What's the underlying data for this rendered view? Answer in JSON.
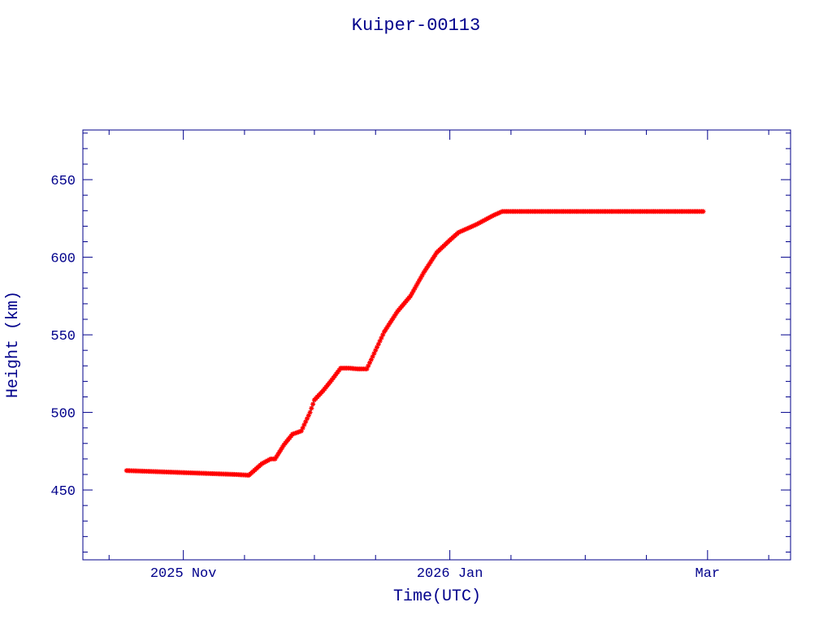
{
  "chart_data": {
    "type": "scatter",
    "title": "Kuiper-00113",
    "xlabel": "Time(UTC)",
    "ylabel": "Height (km)",
    "xlim": [
      "2025-10-09",
      "2026-03-20"
    ],
    "ylim": [
      405,
      682
    ],
    "xticks": [
      {
        "date": "2025-11-01",
        "label": "2025 Nov"
      },
      {
        "date": "2026-01-01",
        "label": "2026 Jan"
      },
      {
        "date": "2026-03-01",
        "label": "Mar"
      }
    ],
    "yticks": [
      450,
      500,
      550,
      600,
      650
    ],
    "grid": false,
    "legend": "none",
    "colors": {
      "axes": "#00008b",
      "text": "#00008b",
      "points": "#ff0000",
      "trend": "#00ffff",
      "background": "#ffffff"
    },
    "series": [
      {
        "marker": "star",
        "points": [
          [
            "2025-10-19",
            462.5
          ],
          [
            "2025-10-24",
            462.0
          ],
          [
            "2025-10-29",
            461.5
          ],
          [
            "2025-11-03",
            461.0
          ],
          [
            "2025-11-08",
            460.5
          ],
          [
            "2025-11-13",
            460.0
          ],
          [
            "2025-11-16",
            459.5
          ],
          [
            "2025-11-17",
            462.0
          ],
          [
            "2025-11-19",
            467.0
          ],
          [
            "2025-11-21",
            470.0
          ],
          [
            "2025-11-22",
            470.0
          ],
          [
            "2025-11-24",
            479.0
          ],
          [
            "2025-11-26",
            486.0
          ],
          [
            "2025-11-28",
            488.0
          ],
          [
            "2025-11-30",
            500.0
          ],
          [
            "2025-12-01",
            508.0
          ],
          [
            "2025-12-03",
            514.0
          ],
          [
            "2025-12-05",
            521.0
          ],
          [
            "2025-12-07",
            528.5
          ],
          [
            "2025-12-09",
            528.5
          ],
          [
            "2025-12-11",
            528.0
          ],
          [
            "2025-12-13",
            528.0
          ],
          [
            "2025-12-15",
            540.0
          ],
          [
            "2025-12-17",
            552.0
          ],
          [
            "2025-12-20",
            565.0
          ],
          [
            "2025-12-23",
            575.0
          ],
          [
            "2025-12-26",
            590.0
          ],
          [
            "2025-12-29",
            603.0
          ],
          [
            "2026-01-01",
            611.0
          ],
          [
            "2026-01-03",
            616.0
          ],
          [
            "2026-01-07",
            621.0
          ],
          [
            "2026-01-11",
            627.0
          ],
          [
            "2026-01-13",
            629.5
          ],
          [
            "2026-01-20",
            629.5
          ],
          [
            "2026-01-28",
            629.5
          ],
          [
            "2026-02-05",
            629.5
          ],
          [
            "2026-02-13",
            629.5
          ],
          [
            "2026-02-21",
            629.5
          ],
          [
            "2026-02-28",
            629.5
          ]
        ]
      }
    ]
  }
}
